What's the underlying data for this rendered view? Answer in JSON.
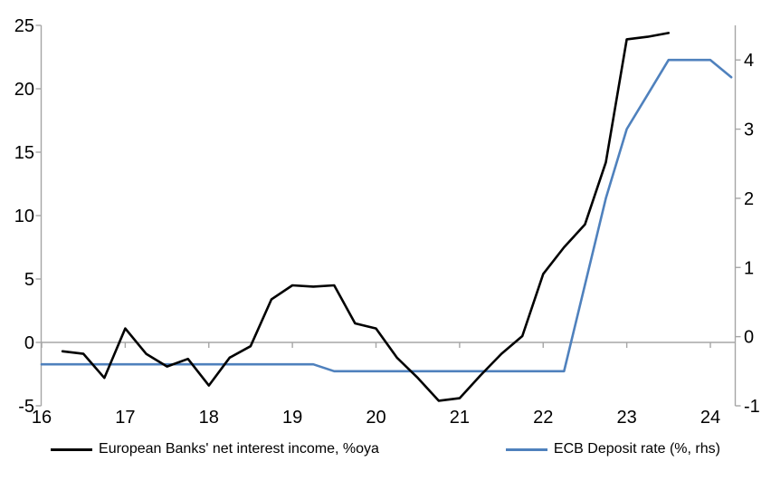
{
  "chart_data": {
    "type": "line",
    "title": "",
    "x_axis": {
      "min": 16,
      "max": 24.3,
      "ticks": [
        16,
        17,
        18,
        19,
        20,
        21,
        22,
        23,
        24
      ]
    },
    "left_axis": {
      "min": -5,
      "max": 25,
      "ticks": [
        25,
        20,
        15,
        10,
        5,
        0,
        -5
      ]
    },
    "right_axis": {
      "min": -1,
      "max": 4.5,
      "ticks": [
        4,
        3,
        2,
        1,
        0,
        -1
      ]
    },
    "grid": "zero-line-only",
    "legend_position": "bottom",
    "axis_color": "#a6a6a6",
    "zero_line_color": "#a6a6a6",
    "series": [
      {
        "name": "European Banks' net interest income, %oya",
        "color": "#000000",
        "axis": "left",
        "x": [
          16.25,
          16.5,
          16.75,
          17.0,
          17.25,
          17.5,
          17.75,
          18.0,
          18.25,
          18.5,
          18.75,
          19.0,
          19.25,
          19.5,
          19.75,
          20.0,
          20.25,
          20.5,
          20.75,
          21.0,
          21.25,
          21.5,
          21.75,
          22.0,
          22.25,
          22.5,
          22.75,
          23.0,
          23.25,
          23.5
        ],
        "y": [
          -0.7,
          -0.9,
          -2.8,
          1.1,
          -0.9,
          -1.9,
          -1.3,
          -3.4,
          -1.2,
          -0.3,
          3.4,
          4.5,
          4.4,
          4.5,
          1.5,
          1.1,
          -1.2,
          -2.8,
          -4.6,
          -4.4,
          -2.6,
          -0.9,
          0.5,
          5.4,
          7.5,
          9.3,
          14.2,
          23.9,
          24.1,
          24.4
        ]
      },
      {
        "name": "ECB Deposit rate (%, rhs)",
        "color": "#4f81bd",
        "axis": "right",
        "x": [
          16.0,
          16.25,
          16.5,
          16.75,
          17.0,
          17.25,
          17.5,
          17.75,
          18.0,
          18.25,
          18.5,
          18.75,
          19.0,
          19.25,
          19.5,
          19.75,
          20.0,
          20.25,
          20.5,
          20.75,
          21.0,
          21.25,
          21.5,
          21.75,
          22.0,
          22.25,
          22.5,
          22.75,
          23.0,
          23.25,
          23.5,
          23.75,
          24.0,
          24.25
        ],
        "y": [
          -0.4,
          -0.4,
          -0.4,
          -0.4,
          -0.4,
          -0.4,
          -0.4,
          -0.4,
          -0.4,
          -0.4,
          -0.4,
          -0.4,
          -0.4,
          -0.4,
          -0.5,
          -0.5,
          -0.5,
          -0.5,
          -0.5,
          -0.5,
          -0.5,
          -0.5,
          -0.5,
          -0.5,
          -0.5,
          -0.5,
          0.75,
          2.0,
          3.0,
          3.5,
          4.0,
          4.0,
          4.0,
          3.75
        ]
      }
    ]
  }
}
